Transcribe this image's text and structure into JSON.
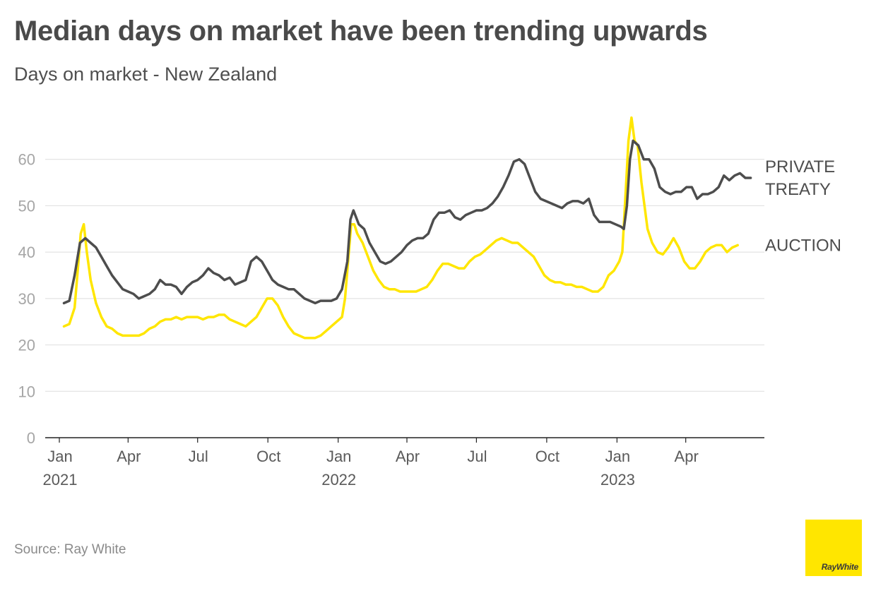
{
  "title": "Median days on market have been trending upwards",
  "subtitle": "Days on market - New Zealand",
  "source": "Source: Ray White",
  "logo_text": "RayWhite",
  "chart_data": {
    "type": "line",
    "title": "Median days on market have been trending upwards",
    "subtitle": "Days on market - New Zealand",
    "xlabel": "",
    "ylabel": "",
    "ylim": [
      0,
      70
    ],
    "xlim": [
      "2021-01-01",
      "2023-06-30"
    ],
    "y_ticks": [
      0,
      10,
      20,
      30,
      40,
      50,
      60
    ],
    "x_ticks": [
      {
        "date": "2021-01-01",
        "label": "Jan",
        "year": "2021"
      },
      {
        "date": "2021-04-01",
        "label": "Apr",
        "year": ""
      },
      {
        "date": "2021-07-01",
        "label": "Jul",
        "year": ""
      },
      {
        "date": "2021-10-01",
        "label": "Oct",
        "year": ""
      },
      {
        "date": "2022-01-01",
        "label": "Jan",
        "year": "2022"
      },
      {
        "date": "2022-04-01",
        "label": "Apr",
        "year": ""
      },
      {
        "date": "2022-07-01",
        "label": "Jul",
        "year": ""
      },
      {
        "date": "2022-10-01",
        "label": "Oct",
        "year": ""
      },
      {
        "date": "2023-01-01",
        "label": "Jan",
        "year": "2023"
      },
      {
        "date": "2023-04-01",
        "label": "Apr",
        "year": ""
      }
    ],
    "grid": "horizontal",
    "legend": "direct labels at right end of lines",
    "series": [
      {
        "name": "PRIVATE TREATY",
        "label_lines": [
          "PRIVATE",
          "TREATY"
        ],
        "color": "#4d4d4d",
        "points": [
          [
            "2021-01-07",
            29
          ],
          [
            "2021-01-14",
            29.5
          ],
          [
            "2021-01-21",
            35
          ],
          [
            "2021-01-28",
            42
          ],
          [
            "2021-02-04",
            43
          ],
          [
            "2021-02-11",
            42
          ],
          [
            "2021-02-18",
            41
          ],
          [
            "2021-02-25",
            39
          ],
          [
            "2021-03-04",
            37
          ],
          [
            "2021-03-11",
            35
          ],
          [
            "2021-03-18",
            33.5
          ],
          [
            "2021-03-25",
            32
          ],
          [
            "2021-04-01",
            31.5
          ],
          [
            "2021-04-08",
            31
          ],
          [
            "2021-04-15",
            30
          ],
          [
            "2021-04-22",
            30.5
          ],
          [
            "2021-04-29",
            31
          ],
          [
            "2021-05-06",
            32
          ],
          [
            "2021-05-13",
            34
          ],
          [
            "2021-05-20",
            33
          ],
          [
            "2021-05-27",
            33
          ],
          [
            "2021-06-03",
            32.5
          ],
          [
            "2021-06-10",
            31
          ],
          [
            "2021-06-17",
            32.5
          ],
          [
            "2021-06-24",
            33.5
          ],
          [
            "2021-07-01",
            34
          ],
          [
            "2021-07-08",
            35
          ],
          [
            "2021-07-15",
            36.5
          ],
          [
            "2021-07-22",
            35.5
          ],
          [
            "2021-07-29",
            35
          ],
          [
            "2021-08-05",
            34
          ],
          [
            "2021-08-12",
            34.5
          ],
          [
            "2021-08-19",
            33
          ],
          [
            "2021-08-26",
            33.5
          ],
          [
            "2021-09-02",
            34
          ],
          [
            "2021-09-09",
            38
          ],
          [
            "2021-09-16",
            39
          ],
          [
            "2021-09-23",
            38
          ],
          [
            "2021-09-30",
            36
          ],
          [
            "2021-10-07",
            34
          ],
          [
            "2021-10-14",
            33
          ],
          [
            "2021-10-21",
            32.5
          ],
          [
            "2021-10-28",
            32
          ],
          [
            "2021-11-04",
            32
          ],
          [
            "2021-11-11",
            31
          ],
          [
            "2021-11-18",
            30
          ],
          [
            "2021-11-25",
            29.5
          ],
          [
            "2021-12-02",
            29
          ],
          [
            "2021-12-09",
            29.5
          ],
          [
            "2021-12-16",
            29.5
          ],
          [
            "2021-12-23",
            29.5
          ],
          [
            "2021-12-30",
            30
          ],
          [
            "2022-01-06",
            32
          ],
          [
            "2022-01-13",
            38
          ],
          [
            "2022-01-17",
            47
          ],
          [
            "2022-01-21",
            49
          ],
          [
            "2022-01-28",
            46
          ],
          [
            "2022-02-04",
            45
          ],
          [
            "2022-02-11",
            42
          ],
          [
            "2022-02-18",
            40
          ],
          [
            "2022-02-25",
            38
          ],
          [
            "2022-03-04",
            37.5
          ],
          [
            "2022-03-11",
            38
          ],
          [
            "2022-03-18",
            39
          ],
          [
            "2022-03-25",
            40
          ],
          [
            "2022-04-01",
            41.5
          ],
          [
            "2022-04-08",
            42.5
          ],
          [
            "2022-04-15",
            43
          ],
          [
            "2022-04-22",
            43
          ],
          [
            "2022-04-29",
            44
          ],
          [
            "2022-05-06",
            47
          ],
          [
            "2022-05-13",
            48.5
          ],
          [
            "2022-05-20",
            48.5
          ],
          [
            "2022-05-27",
            49
          ],
          [
            "2022-06-03",
            47.5
          ],
          [
            "2022-06-10",
            47
          ],
          [
            "2022-06-17",
            48
          ],
          [
            "2022-06-24",
            48.5
          ],
          [
            "2022-07-01",
            49
          ],
          [
            "2022-07-08",
            49
          ],
          [
            "2022-07-15",
            49.5
          ],
          [
            "2022-07-22",
            50.5
          ],
          [
            "2022-07-29",
            52
          ],
          [
            "2022-08-05",
            54
          ],
          [
            "2022-08-12",
            56.5
          ],
          [
            "2022-08-19",
            59.5
          ],
          [
            "2022-08-26",
            60
          ],
          [
            "2022-09-02",
            59
          ],
          [
            "2022-09-09",
            56
          ],
          [
            "2022-09-16",
            53
          ],
          [
            "2022-09-23",
            51.5
          ],
          [
            "2022-09-30",
            51
          ],
          [
            "2022-10-07",
            50.5
          ],
          [
            "2022-10-14",
            50
          ],
          [
            "2022-10-21",
            49.5
          ],
          [
            "2022-10-28",
            50.5
          ],
          [
            "2022-11-04",
            51
          ],
          [
            "2022-11-11",
            51
          ],
          [
            "2022-11-18",
            50.5
          ],
          [
            "2022-11-25",
            51.5
          ],
          [
            "2022-12-02",
            48
          ],
          [
            "2022-12-09",
            46.5
          ],
          [
            "2022-12-16",
            46.5
          ],
          [
            "2022-12-23",
            46.5
          ],
          [
            "2022-12-30",
            46
          ],
          [
            "2023-01-06",
            45.5
          ],
          [
            "2023-01-10",
            45
          ],
          [
            "2023-01-14",
            50
          ],
          [
            "2023-01-18",
            60
          ],
          [
            "2023-01-22",
            64
          ],
          [
            "2023-01-29",
            63
          ],
          [
            "2023-02-05",
            60
          ],
          [
            "2023-02-12",
            60
          ],
          [
            "2023-02-19",
            58
          ],
          [
            "2023-02-26",
            54
          ],
          [
            "2023-03-05",
            53
          ],
          [
            "2023-03-12",
            52.5
          ],
          [
            "2023-03-19",
            53
          ],
          [
            "2023-03-26",
            53
          ],
          [
            "2023-04-02",
            54
          ],
          [
            "2023-04-09",
            54
          ],
          [
            "2023-04-16",
            51.5
          ],
          [
            "2023-04-23",
            52.5
          ],
          [
            "2023-04-30",
            52.5
          ],
          [
            "2023-05-07",
            53
          ],
          [
            "2023-05-14",
            54
          ],
          [
            "2023-05-21",
            56.5
          ],
          [
            "2023-05-28",
            55.5
          ],
          [
            "2023-06-04",
            56.5
          ],
          [
            "2023-06-11",
            57
          ],
          [
            "2023-06-18",
            56
          ],
          [
            "2023-06-25",
            56
          ]
        ]
      },
      {
        "name": "AUCTION",
        "label_lines": [
          "AUCTION"
        ],
        "color": "#ffe600",
        "points": [
          [
            "2021-01-07",
            24
          ],
          [
            "2021-01-14",
            24.5
          ],
          [
            "2021-01-21",
            28
          ],
          [
            "2021-01-25",
            36
          ],
          [
            "2021-01-29",
            44
          ],
          [
            "2021-02-02",
            46
          ],
          [
            "2021-02-06",
            40
          ],
          [
            "2021-02-11",
            34
          ],
          [
            "2021-02-18",
            29
          ],
          [
            "2021-02-25",
            26
          ],
          [
            "2021-03-04",
            24
          ],
          [
            "2021-03-11",
            23.5
          ],
          [
            "2021-03-18",
            22.5
          ],
          [
            "2021-03-25",
            22
          ],
          [
            "2021-04-01",
            22
          ],
          [
            "2021-04-08",
            22
          ],
          [
            "2021-04-15",
            22
          ],
          [
            "2021-04-22",
            22.5
          ],
          [
            "2021-04-29",
            23.5
          ],
          [
            "2021-05-06",
            24
          ],
          [
            "2021-05-13",
            25
          ],
          [
            "2021-05-20",
            25.5
          ],
          [
            "2021-05-27",
            25.5
          ],
          [
            "2021-06-03",
            26
          ],
          [
            "2021-06-10",
            25.5
          ],
          [
            "2021-06-17",
            26
          ],
          [
            "2021-06-24",
            26
          ],
          [
            "2021-07-01",
            26
          ],
          [
            "2021-07-08",
            25.5
          ],
          [
            "2021-07-15",
            26
          ],
          [
            "2021-07-22",
            26
          ],
          [
            "2021-07-29",
            26.5
          ],
          [
            "2021-08-05",
            26.5
          ],
          [
            "2021-08-12",
            25.5
          ],
          [
            "2021-08-19",
            25
          ],
          [
            "2021-08-26",
            24.5
          ],
          [
            "2021-09-02",
            24
          ],
          [
            "2021-09-09",
            25
          ],
          [
            "2021-09-16",
            26
          ],
          [
            "2021-09-23",
            28
          ],
          [
            "2021-09-30",
            30
          ],
          [
            "2021-10-07",
            30
          ],
          [
            "2021-10-14",
            28.5
          ],
          [
            "2021-10-21",
            26
          ],
          [
            "2021-10-28",
            24
          ],
          [
            "2021-11-04",
            22.5
          ],
          [
            "2021-11-11",
            22
          ],
          [
            "2021-11-18",
            21.5
          ],
          [
            "2021-11-25",
            21.5
          ],
          [
            "2021-12-02",
            21.5
          ],
          [
            "2021-12-09",
            22
          ],
          [
            "2021-12-16",
            23
          ],
          [
            "2021-12-23",
            24
          ],
          [
            "2021-12-30",
            25
          ],
          [
            "2022-01-06",
            26
          ],
          [
            "2022-01-10",
            30
          ],
          [
            "2022-01-14",
            38
          ],
          [
            "2022-01-18",
            46
          ],
          [
            "2022-01-22",
            46
          ],
          [
            "2022-01-26",
            44
          ],
          [
            "2022-02-02",
            42
          ],
          [
            "2022-02-09",
            39
          ],
          [
            "2022-02-16",
            36
          ],
          [
            "2022-02-23",
            34
          ],
          [
            "2022-03-02",
            32.5
          ],
          [
            "2022-03-09",
            32
          ],
          [
            "2022-03-16",
            32
          ],
          [
            "2022-03-23",
            31.5
          ],
          [
            "2022-03-30",
            31.5
          ],
          [
            "2022-04-06",
            31.5
          ],
          [
            "2022-04-13",
            31.5
          ],
          [
            "2022-04-20",
            32
          ],
          [
            "2022-04-27",
            32.5
          ],
          [
            "2022-05-04",
            34
          ],
          [
            "2022-05-11",
            36
          ],
          [
            "2022-05-18",
            37.5
          ],
          [
            "2022-05-25",
            37.5
          ],
          [
            "2022-06-01",
            37
          ],
          [
            "2022-06-08",
            36.5
          ],
          [
            "2022-06-15",
            36.5
          ],
          [
            "2022-06-22",
            38
          ],
          [
            "2022-06-29",
            39
          ],
          [
            "2022-07-06",
            39.5
          ],
          [
            "2022-07-13",
            40.5
          ],
          [
            "2022-07-20",
            41.5
          ],
          [
            "2022-07-27",
            42.5
          ],
          [
            "2022-08-03",
            43
          ],
          [
            "2022-08-10",
            42.5
          ],
          [
            "2022-08-17",
            42
          ],
          [
            "2022-08-24",
            42
          ],
          [
            "2022-08-31",
            41
          ],
          [
            "2022-09-07",
            40
          ],
          [
            "2022-09-14",
            39
          ],
          [
            "2022-09-21",
            37
          ],
          [
            "2022-09-28",
            35
          ],
          [
            "2022-10-05",
            34
          ],
          [
            "2022-10-12",
            33.5
          ],
          [
            "2022-10-19",
            33.5
          ],
          [
            "2022-10-26",
            33
          ],
          [
            "2022-11-02",
            33
          ],
          [
            "2022-11-09",
            32.5
          ],
          [
            "2022-11-16",
            32.5
          ],
          [
            "2022-11-23",
            32
          ],
          [
            "2022-11-30",
            31.5
          ],
          [
            "2022-12-07",
            31.5
          ],
          [
            "2022-12-14",
            32.5
          ],
          [
            "2022-12-21",
            35
          ],
          [
            "2022-12-28",
            36
          ],
          [
            "2023-01-04",
            38
          ],
          [
            "2023-01-08",
            40
          ],
          [
            "2023-01-12",
            52
          ],
          [
            "2023-01-16",
            64
          ],
          [
            "2023-01-20",
            69
          ],
          [
            "2023-01-24",
            64
          ],
          [
            "2023-01-28",
            63
          ],
          [
            "2023-02-02",
            55
          ],
          [
            "2023-02-06",
            50
          ],
          [
            "2023-02-10",
            45
          ],
          [
            "2023-02-16",
            42
          ],
          [
            "2023-02-23",
            40
          ],
          [
            "2023-03-02",
            39.5
          ],
          [
            "2023-03-09",
            41
          ],
          [
            "2023-03-16",
            43
          ],
          [
            "2023-03-23",
            41
          ],
          [
            "2023-03-30",
            38
          ],
          [
            "2023-04-06",
            36.5
          ],
          [
            "2023-04-13",
            36.5
          ],
          [
            "2023-04-20",
            38
          ],
          [
            "2023-04-27",
            40
          ],
          [
            "2023-05-04",
            41
          ],
          [
            "2023-05-11",
            41.5
          ],
          [
            "2023-05-18",
            41.5
          ],
          [
            "2023-05-25",
            40
          ],
          [
            "2023-06-01",
            41
          ],
          [
            "2023-06-08",
            41.5
          ]
        ]
      }
    ]
  }
}
